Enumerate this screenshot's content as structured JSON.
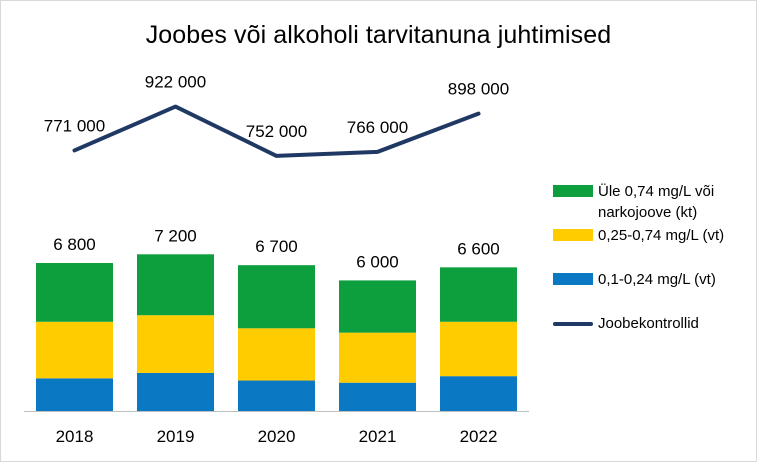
{
  "chart_data": {
    "type": "bar",
    "title": "Joobes või alkoholi tarvitanuna juhtimised",
    "categories": [
      "2018",
      "2019",
      "2020",
      "2021",
      "2022"
    ],
    "stacked": true,
    "series": [
      {
        "name": "0,1-0,24 mg/L (vt)",
        "color": "#0a78c2",
        "values": [
          1500,
          1750,
          1400,
          1300,
          1600
        ]
      },
      {
        "name": "0,25-0,74 mg/L (vt)",
        "color": "#ffcc00",
        "values": [
          2600,
          2650,
          2400,
          2300,
          2500
        ]
      },
      {
        "name": "Üle 0,74 mg/L või narkojoove (kt)",
        "color": "#0d9f3e",
        "values": [
          2700,
          2800,
          2900,
          2400,
          2500
        ]
      }
    ],
    "bar_totals": [
      6800,
      7200,
      6700,
      6000,
      6600
    ],
    "bar_total_labels": [
      "6 800",
      "7 200",
      "6 700",
      "6 000",
      "6 600"
    ],
    "line_series": {
      "name": "Joobekontrollid",
      "color": "#203864",
      "values": [
        771000,
        922000,
        752000,
        766000,
        898000
      ],
      "labels": [
        "771 000",
        "922 000",
        "752 000",
        "766 000",
        "898 000"
      ]
    },
    "y_range": [
      0,
      9000
    ],
    "y2_range": [
      0,
      1200000
    ],
    "axes_visible": false,
    "grid": false,
    "legend_position": "right"
  },
  "legend": {
    "items": [
      {
        "label": "Üle 0,74 mg/L või narkojoove (kt)",
        "color": "#0d9f3e",
        "kind": "box"
      },
      {
        "label": "0,25-0,74 mg/L (vt)",
        "color": "#ffcc00",
        "kind": "box"
      },
      {
        "label": "0,1-0,24 mg/L (vt)",
        "color": "#0a78c2",
        "kind": "box"
      },
      {
        "label": "Joobekontrollid",
        "color": "#203864",
        "kind": "line"
      }
    ]
  }
}
